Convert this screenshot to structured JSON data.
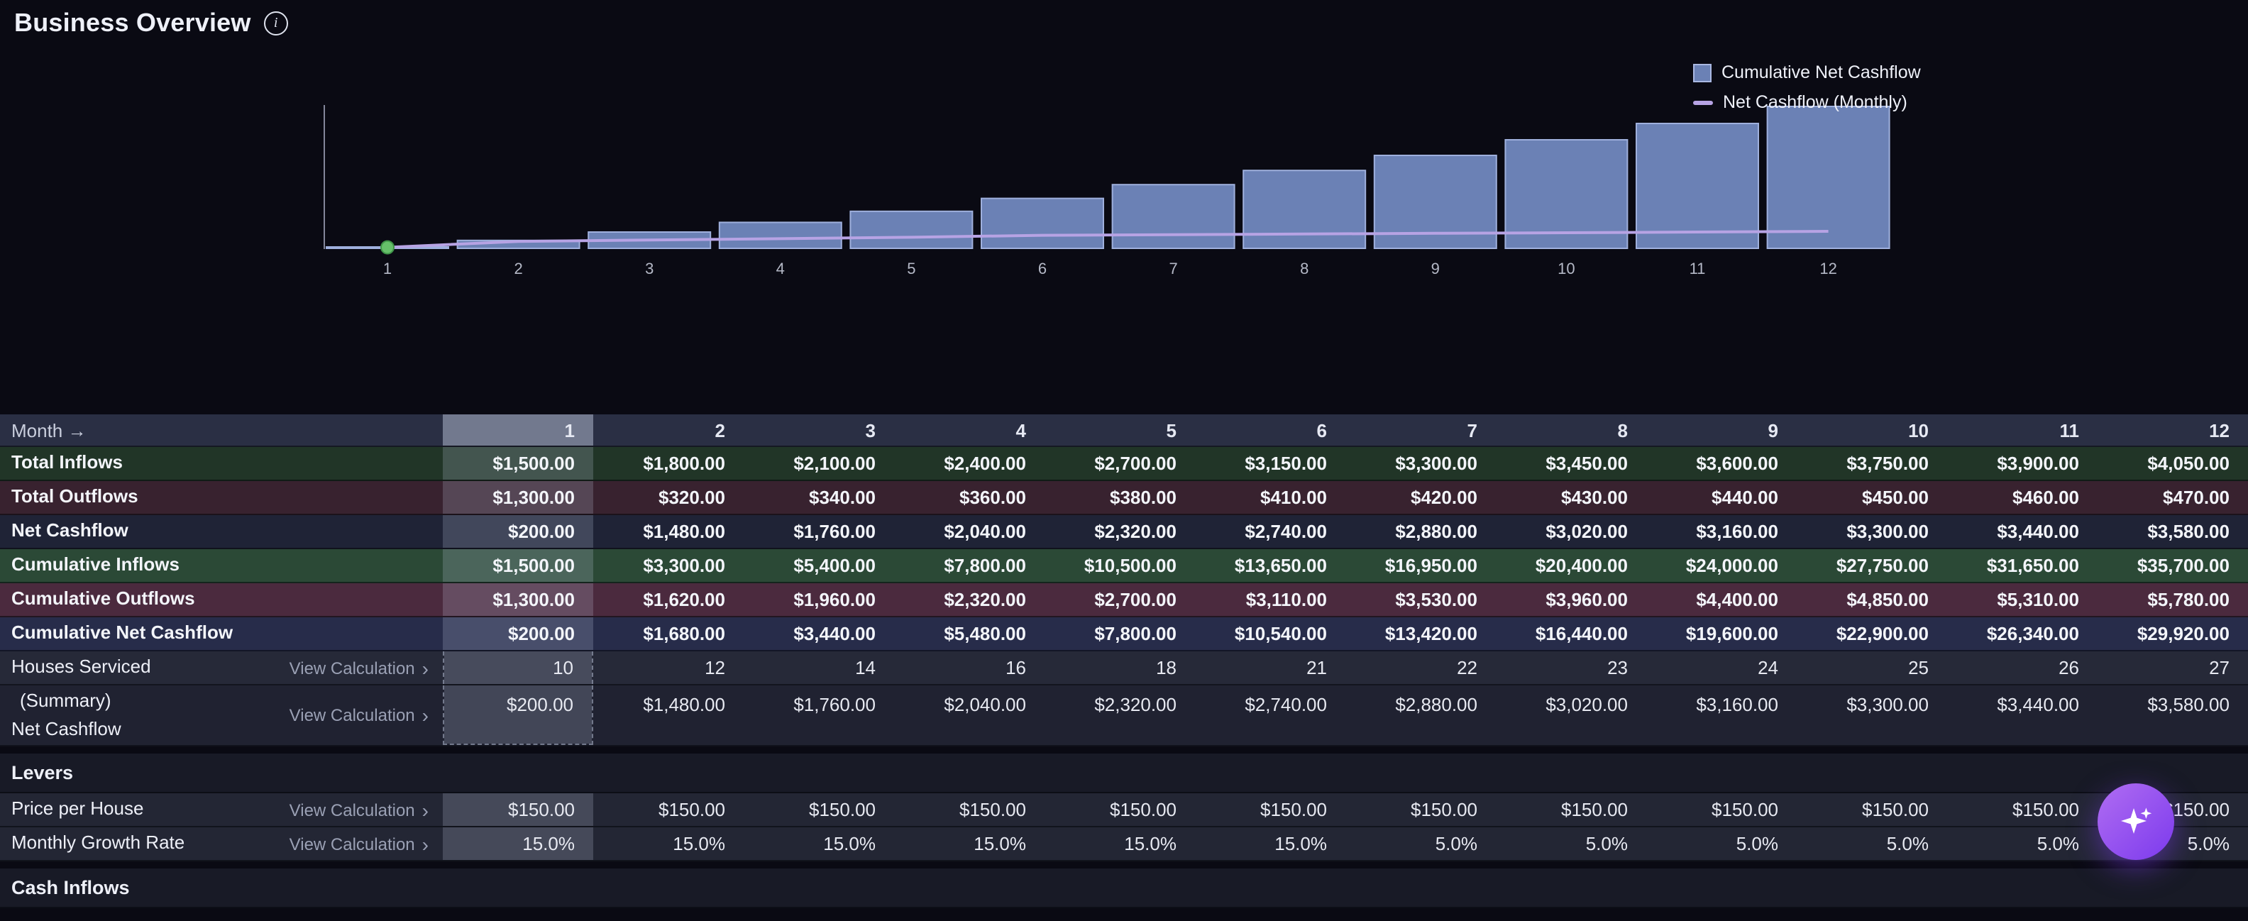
{
  "page": {
    "title": "Business Overview"
  },
  "icons": {
    "info": "i",
    "chevron": "›",
    "sparkle": "✦"
  },
  "colors": {
    "accent_purple": "#8b5cf6",
    "bar_fill": "#6b81b5",
    "bar_stroke": "#9fb0dd",
    "line": "#b7a3e4",
    "selected_point": "#66bf6a",
    "axis": "#83869a",
    "column_highlight": "rgba(205,216,242,0.20)"
  },
  "legend": {
    "items": [
      {
        "label": "Cumulative Net Cashflow",
        "swatch": "square",
        "color": "#6b81b5"
      },
      {
        "label": "Net Cashflow (Monthly)",
        "swatch": "line",
        "color": "#b7a3e4"
      }
    ]
  },
  "chart_data": {
    "type": "bar",
    "x": [
      1,
      2,
      3,
      4,
      5,
      6,
      7,
      8,
      9,
      10,
      11,
      12
    ],
    "xlabel": "Month",
    "ylim": [
      0,
      29920
    ],
    "grid": false,
    "legend_position": "top-right",
    "series": [
      {
        "name": "Cumulative Net Cashflow",
        "type": "bar",
        "color": "#6b81b5",
        "values": [
          200,
          1680,
          3440,
          5480,
          7800,
          10540,
          13420,
          16440,
          19600,
          22900,
          26340,
          29920
        ]
      },
      {
        "name": "Net Cashflow (Monthly)",
        "type": "line",
        "color": "#b7a3e4",
        "values": [
          200,
          1480,
          1760,
          2040,
          2320,
          2740,
          2880,
          3020,
          3160,
          3300,
          3440,
          3580
        ]
      }
    ],
    "selected_point": {
      "series": "Net Cashflow (Monthly)",
      "month": 1,
      "value": 200,
      "color": "#66bf6a"
    }
  },
  "table": {
    "corner_label": "Month →",
    "view_calculation_label": "View Calculation",
    "columns": [
      "1",
      "2",
      "3",
      "4",
      "5",
      "6",
      "7",
      "8",
      "9",
      "10",
      "11",
      "12"
    ],
    "selected_column": "1",
    "rows": [
      {
        "label": "Total Inflows",
        "emphasis": true,
        "bg": "#213527",
        "values": [
          "$1,500.00",
          "$1,800.00",
          "$2,100.00",
          "$2,400.00",
          "$2,700.00",
          "$3,150.00",
          "$3,300.00",
          "$3,450.00",
          "$3,600.00",
          "$3,750.00",
          "$3,900.00",
          "$4,050.00"
        ]
      },
      {
        "label": "Total Outflows",
        "emphasis": true,
        "bg": "#38222f",
        "values": [
          "$1,300.00",
          "$320.00",
          "$340.00",
          "$360.00",
          "$380.00",
          "$410.00",
          "$420.00",
          "$430.00",
          "$440.00",
          "$450.00",
          "$460.00",
          "$470.00"
        ]
      },
      {
        "label": "Net Cashflow",
        "emphasis": true,
        "bg": "#1f2336",
        "values": [
          "$200.00",
          "$1,480.00",
          "$1,760.00",
          "$2,040.00",
          "$2,320.00",
          "$2,740.00",
          "$2,880.00",
          "$3,020.00",
          "$3,160.00",
          "$3,300.00",
          "$3,440.00",
          "$3,580.00"
        ]
      },
      {
        "label": "Cumulative Inflows",
        "emphasis": true,
        "bg": "#2b4936",
        "values": [
          "$1,500.00",
          "$3,300.00",
          "$5,400.00",
          "$7,800.00",
          "$10,500.00",
          "$13,650.00",
          "$16,950.00",
          "$20,400.00",
          "$24,000.00",
          "$27,750.00",
          "$31,650.00",
          "$35,700.00"
        ]
      },
      {
        "label": "Cumulative Outflows",
        "emphasis": true,
        "bg": "#4b2a3e",
        "values": [
          "$1,300.00",
          "$1,620.00",
          "$1,960.00",
          "$2,320.00",
          "$2,700.00",
          "$3,110.00",
          "$3,530.00",
          "$3,960.00",
          "$4,400.00",
          "$4,850.00",
          "$5,310.00",
          "$5,780.00"
        ]
      },
      {
        "label": "Cumulative Net Cashflow",
        "emphasis": true,
        "bg": "#272c4a",
        "values": [
          "$200.00",
          "$1,680.00",
          "$3,440.00",
          "$5,480.00",
          "$7,800.00",
          "$10,540.00",
          "$13,420.00",
          "$16,440.00",
          "$19,600.00",
          "$22,900.00",
          "$26,340.00",
          "$29,920.00"
        ]
      },
      {
        "label": "Houses Serviced",
        "link": true,
        "bg": "#262938",
        "range_sel": true,
        "values": [
          "10",
          "12",
          "14",
          "16",
          "18",
          "21",
          "22",
          "23",
          "24",
          "25",
          "26",
          "27"
        ]
      },
      {
        "label": "(Summary)",
        "label2": "Net Cashflow",
        "link": true,
        "tall": true,
        "bg": "#202231",
        "range_sel": true,
        "range_sel_end": true,
        "values": [
          "$200.00",
          "$1,480.00",
          "$1,760.00",
          "$2,040.00",
          "$2,320.00",
          "$2,740.00",
          "$2,880.00",
          "$3,020.00",
          "$3,160.00",
          "$3,300.00",
          "$3,440.00",
          "$3,580.00"
        ]
      },
      {
        "section": "Levers"
      },
      {
        "label": "Price per House",
        "link": true,
        "bg": "#232634",
        "values": [
          "$150.00",
          "$150.00",
          "$150.00",
          "$150.00",
          "$150.00",
          "$150.00",
          "$150.00",
          "$150.00",
          "$150.00",
          "$150.00",
          "$150.00",
          "$150.00"
        ]
      },
      {
        "label": "Monthly Growth Rate",
        "link": true,
        "bg": "#232634",
        "values": [
          "15.0%",
          "15.0%",
          "15.0%",
          "15.0%",
          "15.0%",
          "15.0%",
          "5.0%",
          "5.0%",
          "5.0%",
          "5.0%",
          "5.0%",
          "5.0%"
        ]
      },
      {
        "section": "Cash Inflows"
      }
    ]
  }
}
